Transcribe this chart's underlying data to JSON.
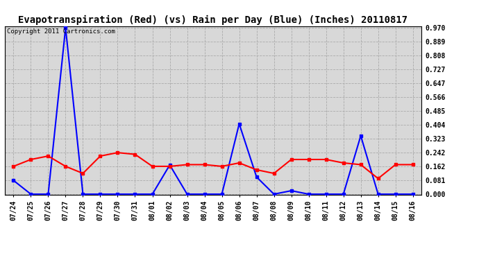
{
  "title": "Evapotranspiration (Red) (vs) Rain per Day (Blue) (Inches) 20110817",
  "copyright": "Copyright 2011 Cartronics.com",
  "x_labels": [
    "07/24",
    "07/25",
    "07/26",
    "07/27",
    "07/28",
    "07/29",
    "07/30",
    "07/31",
    "08/01",
    "08/02",
    "08/03",
    "08/04",
    "08/05",
    "08/06",
    "08/07",
    "08/08",
    "08/09",
    "08/10",
    "08/11",
    "08/12",
    "08/13",
    "08/14",
    "08/15",
    "08/16"
  ],
  "rain_blue": [
    0.08,
    0.0,
    0.0,
    0.97,
    0.0,
    0.0,
    0.0,
    0.0,
    0.0,
    0.17,
    0.0,
    0.0,
    0.0,
    0.41,
    0.1,
    0.0,
    0.02,
    0.0,
    0.0,
    0.0,
    0.34,
    0.0,
    0.0,
    0.0
  ],
  "et_red": [
    0.162,
    0.202,
    0.222,
    0.162,
    0.121,
    0.222,
    0.242,
    0.232,
    0.162,
    0.162,
    0.172,
    0.172,
    0.162,
    0.182,
    0.142,
    0.121,
    0.202,
    0.202,
    0.202,
    0.182,
    0.172,
    0.091,
    0.172,
    0.172
  ],
  "blue_color": "#0000FF",
  "red_color": "#FF0000",
  "fig_bg_color": "#FFFFFF",
  "plot_bg_color": "#D8D8D8",
  "grid_color": "#AAAAAA",
  "yticks": [
    0.0,
    0.081,
    0.162,
    0.242,
    0.323,
    0.404,
    0.485,
    0.566,
    0.647,
    0.727,
    0.808,
    0.889,
    0.97
  ],
  "ylim": [
    -0.005,
    0.98
  ],
  "title_fontsize": 10,
  "tick_fontsize": 7,
  "copyright_fontsize": 6.5,
  "marker_size": 3,
  "line_width": 1.5
}
